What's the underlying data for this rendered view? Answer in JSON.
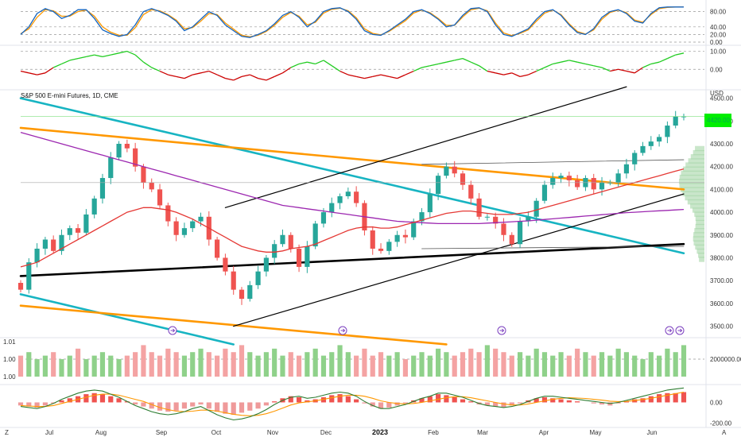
{
  "symbol": {
    "title": "S&P 500 E-mini Futures, 1D, CME",
    "currency": "USD",
    "last_price_label": "4420.00"
  },
  "colors": {
    "up": "#26a69a",
    "down": "#ef5350",
    "vol_up": "#8fd18a",
    "vol_down": "#f4a3a3",
    "sma_fast": "#e53935",
    "sma_slow": "#9c27b0",
    "teal_line": "#17b4c2",
    "orange_line": "#ff9800",
    "black_line": "#000000",
    "stoch_k": "#1565c0",
    "stoch_d": "#ff9800",
    "osc_pos": "#22cc22",
    "osc_neg": "#cc0000",
    "price_tag": "#00ee00"
  },
  "footer": {
    "left": "Z",
    "right": "A"
  },
  "chart_data": [
    {
      "type": "line",
      "name": "stochastic",
      "y_ticks": [
        "80.00",
        "40.00",
        "20.00",
        "0.00"
      ],
      "ylim": [
        0,
        100
      ],
      "k_values": [
        20,
        40,
        75,
        88,
        80,
        62,
        70,
        85,
        85,
        62,
        32,
        22,
        15,
        20,
        45,
        80,
        88,
        80,
        70,
        55,
        30,
        40,
        60,
        80,
        70,
        45,
        30,
        15,
        12,
        20,
        30,
        48,
        70,
        80,
        65,
        40,
        55,
        80,
        88,
        90,
        80,
        60,
        30,
        20,
        18,
        30,
        45,
        60,
        80,
        85,
        75,
        60,
        40,
        45,
        70,
        88,
        90,
        80,
        45,
        20,
        15,
        25,
        35,
        60,
        80,
        85,
        70,
        45,
        25,
        20,
        35,
        65,
        80,
        85,
        75,
        55,
        50,
        75,
        90,
        92,
        92,
        92
      ],
      "d_values": [
        22,
        35,
        65,
        85,
        82,
        68,
        68,
        80,
        84,
        68,
        40,
        26,
        18,
        18,
        38,
        72,
        85,
        82,
        72,
        58,
        35,
        38,
        55,
        75,
        72,
        50,
        34,
        18,
        14,
        18,
        28,
        44,
        65,
        78,
        68,
        45,
        52,
        76,
        86,
        89,
        82,
        64,
        35,
        23,
        19,
        28,
        42,
        56,
        76,
        84,
        77,
        62,
        44,
        44,
        66,
        85,
        89,
        82,
        50,
        24,
        17,
        23,
        32,
        55,
        76,
        84,
        72,
        48,
        28,
        21,
        32,
        60,
        78,
        84,
        77,
        58,
        52,
        72,
        88,
        91,
        92,
        92
      ]
    },
    {
      "type": "line",
      "name": "momentum-oscillator",
      "y_ticks": [
        "10.00",
        "0.00"
      ],
      "ylim": [
        -10,
        12
      ],
      "values": [
        -1,
        -2,
        -3,
        -2,
        1,
        3,
        5,
        6,
        7,
        8,
        7,
        8,
        9,
        10,
        8,
        4,
        1,
        -1,
        -3,
        -4,
        -5,
        -3,
        -2,
        -1,
        -3,
        -5,
        -6,
        -4,
        -3,
        -5,
        -6,
        -4,
        -2,
        1,
        3,
        4,
        3,
        5,
        2,
        -1,
        -3,
        -4,
        -5,
        -4,
        -3,
        -4,
        -5,
        -3,
        -1,
        1,
        2,
        3,
        4,
        5,
        6,
        4,
        2,
        -1,
        -2,
        -3,
        -2,
        -4,
        -3,
        -1,
        1,
        3,
        4,
        5,
        4,
        3,
        2,
        1,
        -1,
        0,
        -1,
        -2,
        1,
        3,
        4,
        6,
        8,
        9
      ]
    },
    {
      "type": "candlestick",
      "name": "price",
      "x_ticks": [
        "Jul",
        "Aug",
        "Sep",
        "Oct",
        "Nov",
        "Dec",
        "2023",
        "Feb",
        "Mar",
        "Apr",
        "May",
        "Jun"
      ],
      "y_ticks": [
        "4500.00",
        "4400.00",
        "4300.00",
        "4200.00",
        "4100.00",
        "4000.00",
        "3900.00",
        "3800.00",
        "3700.00",
        "3600.00",
        "3500.00"
      ],
      "ylim": [
        3460,
        4530
      ],
      "close": [
        3660,
        3780,
        3840,
        3880,
        3830,
        3900,
        3930,
        3910,
        3990,
        4060,
        4150,
        4240,
        4300,
        4280,
        4200,
        4130,
        4100,
        4030,
        3960,
        3900,
        3930,
        3960,
        3980,
        3880,
        3800,
        3740,
        3660,
        3620,
        3680,
        3740,
        3800,
        3860,
        3900,
        3840,
        3760,
        3850,
        3950,
        4000,
        4040,
        4070,
        4090,
        4040,
        3920,
        3840,
        3830,
        3870,
        3900,
        3890,
        3960,
        4000,
        4080,
        4160,
        4200,
        4170,
        4120,
        4060,
        3980,
        3980,
        3950,
        3900,
        3860,
        3960,
        3980,
        4050,
        4120,
        4150,
        4160,
        4140,
        4110,
        4150,
        4100,
        4130,
        4130,
        4170,
        4210,
        4260,
        4290,
        4310,
        4330,
        4380,
        4420,
        4420
      ],
      "volumes": [
        0.6,
        0.7,
        0.5,
        0.6,
        0.7,
        0.5,
        0.6,
        0.8,
        0.5,
        0.6,
        0.7,
        0.6,
        0.5,
        0.6,
        0.7,
        0.9,
        0.7,
        0.6,
        0.8,
        0.7,
        0.6,
        0.7,
        0.8,
        0.7,
        0.6,
        0.8,
        0.7,
        0.9,
        0.7,
        0.6,
        0.7,
        0.8,
        0.6,
        0.7,
        0.6,
        0.7,
        0.8,
        0.6,
        0.7,
        0.9,
        0.7,
        0.6,
        0.8,
        0.6,
        0.7,
        0.6,
        0.7,
        0.5,
        0.6,
        0.7,
        0.6,
        0.8,
        0.7,
        0.6,
        0.7,
        0.8,
        0.7,
        0.9,
        0.8,
        0.7,
        0.6,
        0.7,
        0.6,
        0.8,
        0.7,
        0.6,
        0.7,
        0.6,
        0.8,
        0.7,
        0.6,
        0.7,
        0.6,
        0.8,
        0.7,
        0.6,
        0.5,
        0.7,
        0.6,
        0.8,
        0.7,
        0.9
      ],
      "sma_fast": [
        3760,
        3770,
        3780,
        3800,
        3820,
        3840,
        3860,
        3880,
        3900,
        3920,
        3940,
        3960,
        3980,
        4000,
        4010,
        4020,
        4020,
        4015,
        4010,
        4000,
        3985,
        3970,
        3950,
        3930,
        3910,
        3890,
        3870,
        3850,
        3840,
        3830,
        3825,
        3825,
        3830,
        3840,
        3845,
        3850,
        3860,
        3875,
        3890,
        3905,
        3920,
        3930,
        3935,
        3935,
        3930,
        3930,
        3935,
        3945,
        3955,
        3965,
        3975,
        3985,
        3995,
        4000,
        4005,
        4005,
        4000,
        3995,
        3990,
        3990,
        3990,
        3995,
        4000,
        4010,
        4020,
        4030,
        4040,
        4050,
        4060,
        4070,
        4080,
        4090,
        4100,
        4110,
        4120,
        4130,
        4140,
        4150,
        4160,
        4170,
        4180,
        4190
      ],
      "sma_slow": [
        4350,
        4340,
        4330,
        4320,
        4310,
        4300,
        4290,
        4280,
        4270,
        4260,
        4250,
        4240,
        4230,
        4220,
        4210,
        4200,
        4190,
        4180,
        4170,
        4160,
        4150,
        4140,
        4130,
        4120,
        4110,
        4100,
        4090,
        4080,
        4070,
        4060,
        4050,
        4040,
        4030,
        4025,
        4020,
        4015,
        4010,
        4005,
        4000,
        3995,
        3990,
        3985,
        3980,
        3975,
        3970,
        3965,
        3960,
        3958,
        3956,
        3954,
        3952,
        3950,
        3950,
        3950,
        3950,
        3950,
        3950,
        3952,
        3954,
        3956,
        3958,
        3960,
        3962,
        3965,
        3968,
        3971,
        3974,
        3977,
        3980,
        3983,
        3986,
        3989,
        3992,
        3995,
        3998,
        4000,
        4002,
        4004,
        4006,
        4008,
        4010,
        4012
      ],
      "trendlines": [
        {
          "name": "teal-upper",
          "x": [
            0,
            81
          ],
          "y": [
            4500,
            3820
          ]
        },
        {
          "name": "teal-lower",
          "x": [
            0,
            26
          ],
          "y": [
            3640,
            3420
          ]
        },
        {
          "name": "orange-upper",
          "x": [
            0,
            81
          ],
          "y": [
            4370,
            4100
          ]
        },
        {
          "name": "orange-lower",
          "x": [
            0,
            52
          ],
          "y": [
            3590,
            3420
          ]
        },
        {
          "name": "black-thick",
          "x": [
            0,
            81
          ],
          "y": [
            3720,
            3860
          ]
        },
        {
          "name": "black-channel-upper",
          "x": [
            25,
            74
          ],
          "y": [
            4020,
            4550
          ]
        },
        {
          "name": "black-channel-lower",
          "x": [
            26,
            81
          ],
          "y": [
            3500,
            4080
          ]
        },
        {
          "name": "thin-top",
          "x": [
            49,
            81
          ],
          "y": [
            4210,
            4230
          ]
        },
        {
          "name": "thin-bottom",
          "x": [
            49,
            81
          ],
          "y": [
            3840,
            3850
          ]
        }
      ]
    },
    {
      "type": "bar",
      "name": "volume",
      "left_ticks": [
        "1.01",
        "1.00",
        "1.00"
      ],
      "right_ticks": [
        "2000000.00"
      ]
    },
    {
      "type": "bar",
      "name": "macd",
      "right_ticks": [
        "0.00",
        "-200.00"
      ],
      "ylim": [
        -220,
        150
      ],
      "histogram": [
        -30,
        -40,
        -50,
        -30,
        -10,
        20,
        40,
        60,
        80,
        90,
        80,
        60,
        40,
        10,
        -20,
        -40,
        -60,
        -80,
        -90,
        -80,
        -60,
        -40,
        -20,
        -60,
        -90,
        -110,
        -120,
        -100,
        -80,
        -60,
        -30,
        10,
        40,
        60,
        50,
        20,
        30,
        50,
        70,
        80,
        60,
        30,
        -10,
        -40,
        -60,
        -50,
        -30,
        -10,
        20,
        40,
        60,
        80,
        70,
        50,
        30,
        10,
        -20,
        -30,
        -40,
        -50,
        -30,
        -10,
        20,
        40,
        50,
        40,
        30,
        20,
        10,
        0,
        -10,
        -20,
        -30,
        -10,
        10,
        30,
        40,
        60,
        80,
        90,
        90,
        100
      ],
      "macd_line": [
        -40,
        -50,
        -60,
        -40,
        -10,
        30,
        60,
        90,
        110,
        120,
        110,
        80,
        50,
        10,
        -30,
        -60,
        -90,
        -110,
        -120,
        -110,
        -90,
        -60,
        -40,
        -80,
        -120,
        -150,
        -170,
        -160,
        -140,
        -110,
        -70,
        -20,
        20,
        50,
        60,
        40,
        50,
        70,
        90,
        100,
        90,
        60,
        10,
        -30,
        -60,
        -60,
        -40,
        -20,
        10,
        40,
        60,
        90,
        90,
        70,
        50,
        20,
        -10,
        -30,
        -40,
        -50,
        -40,
        -20,
        10,
        40,
        60,
        60,
        50,
        40,
        30,
        20,
        10,
        0,
        -10,
        0,
        20,
        40,
        60,
        80,
        100,
        120,
        130,
        140
      ],
      "signal_line": [
        -30,
        -35,
        -40,
        -40,
        -30,
        -10,
        10,
        30,
        50,
        70,
        80,
        80,
        70,
        50,
        30,
        10,
        -20,
        -50,
        -70,
        -85,
        -90,
        -85,
        -75,
        -75,
        -85,
        -100,
        -115,
        -125,
        -130,
        -125,
        -110,
        -85,
        -55,
        -25,
        -5,
        5,
        15,
        30,
        45,
        60,
        70,
        70,
        60,
        40,
        15,
        0,
        -10,
        -15,
        -10,
        0,
        15,
        30,
        45,
        55,
        55,
        45,
        30,
        15,
        0,
        -15,
        -25,
        -25,
        -15,
        0,
        15,
        30,
        40,
        45,
        42,
        38,
        30,
        22,
        12,
        8,
        10,
        18,
        28,
        40,
        55,
        70,
        85,
        100
      ]
    }
  ]
}
